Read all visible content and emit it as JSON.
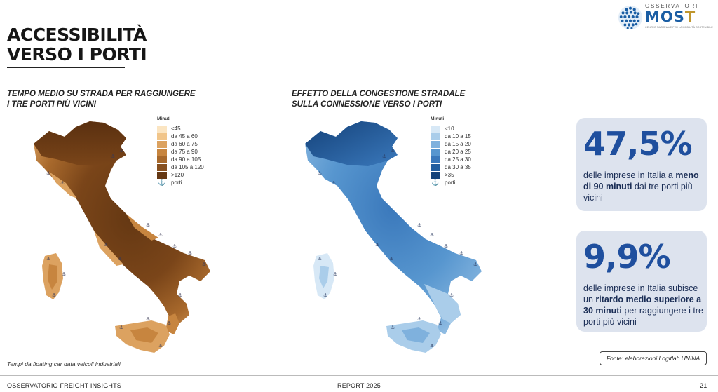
{
  "page": {
    "title_line1": "ACCESSIBILITÀ",
    "title_line2": "VERSO I PORTI"
  },
  "logo": {
    "top": "OSSERVATORI",
    "word_m": "M",
    "word_o": "O",
    "word_s": "S",
    "word_t": "T",
    "sub": "CENTRO NAZIONALE PER LA MOBILITÀ SOSTENIBILE"
  },
  "map_left": {
    "heading_line1": "TEMPO MEDIO SU STRADA PER RAGGIUNGERE",
    "heading_line2": "I TRE PORTI PIÙ VICINI",
    "legend_title": "Minuti",
    "legend": [
      {
        "label": "<45",
        "color": "#fbe5c2"
      },
      {
        "label": "da 45 a 60",
        "color": "#f1c58a"
      },
      {
        "label": "da 60 a 75",
        "color": "#dca260"
      },
      {
        "label": "da 75 a 90",
        "color": "#c7853f"
      },
      {
        "label": "da 90 a 105",
        "color": "#a8692c"
      },
      {
        "label": "da 105 a 120",
        "color": "#875020"
      },
      {
        "label": ">120",
        "color": "#653813"
      }
    ],
    "ports_label": "porti",
    "note": "Tempi da floating car data veicoli industriali"
  },
  "map_right": {
    "heading_line1": "EFFETTO DELLA CONGESTIONE STRADALE",
    "heading_line2": "SULLA CONNESSIONE VERSO I PORTI",
    "legend_title": "Minuti",
    "legend": [
      {
        "label": "<10",
        "color": "#d7e8f6"
      },
      {
        "label": "da 10 a 15",
        "color": "#aacdea"
      },
      {
        "label": "da 15 a 20",
        "color": "#7fb1dd"
      },
      {
        "label": "da 20 a 25",
        "color": "#5796cf"
      },
      {
        "label": "da 25 a 30",
        "color": "#3a78bb"
      },
      {
        "label": "da 30 a 35",
        "color": "#235e9f"
      },
      {
        "label": ">35",
        "color": "#14427a"
      }
    ],
    "ports_label": "porti"
  },
  "stats": [
    {
      "value": "47,5%",
      "text_before": "delle imprese in Italia a ",
      "text_bold": "meno di 90 minuti",
      "text_after": " dai tre porti più vicini"
    },
    {
      "value": "9,9%",
      "text_before": "delle imprese in Italia subisce un ",
      "text_bold": "ritardo medio superiore a 30 minuti",
      "text_after": " per raggiungere i tre porti più vicini"
    }
  ],
  "source": "Fonte: elaborazioni Logitlab UNINA",
  "footer": {
    "left": "OSSERVATORIO FREIGHT INSIGHTS",
    "center": "REPORT 2025",
    "page_number": "21"
  },
  "colors": {
    "stat_blue": "#1f4f9e",
    "card_bg": "#dde3ee"
  }
}
